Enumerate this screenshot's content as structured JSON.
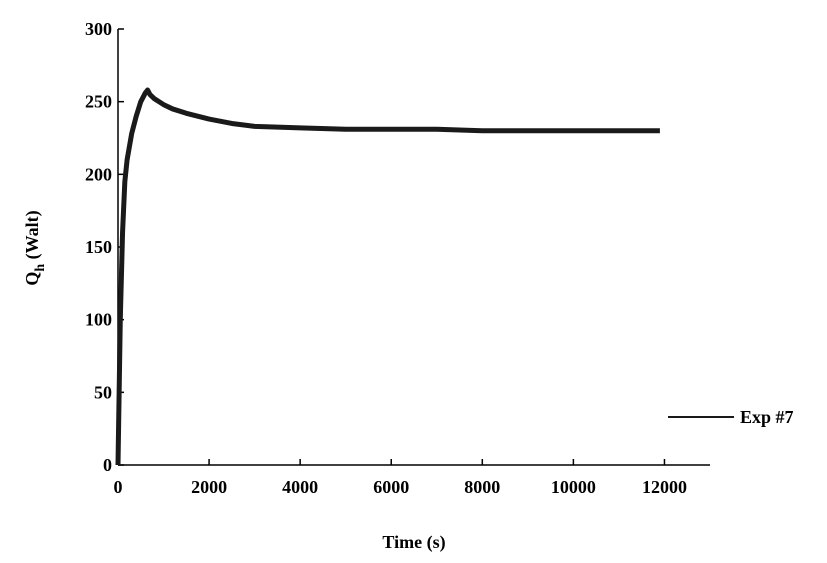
{
  "chart_data": {
    "type": "line",
    "xlabel": "Time (s)",
    "ylabel": {
      "main": "Q",
      "sub": "h",
      "rest": " (Walt)"
    },
    "x": [
      0,
      50,
      100,
      150,
      200,
      300,
      400,
      500,
      600,
      650,
      700,
      800,
      1000,
      1200,
      1500,
      2000,
      2500,
      3000,
      4000,
      5000,
      6000,
      7000,
      8000,
      9000,
      10000,
      11000,
      11900
    ],
    "series": [
      {
        "name": "Exp #7",
        "color": "#1a1a1a",
        "values": [
          0,
          100,
          160,
          195,
          210,
          228,
          240,
          250,
          256,
          258,
          255,
          252,
          248,
          245,
          242,
          238,
          235,
          233,
          232,
          231,
          231,
          231,
          230,
          230,
          230,
          230,
          230
        ]
      }
    ],
    "xlim": [
      0,
      13000
    ],
    "xticks": [
      0,
      2000,
      4000,
      6000,
      8000,
      10000,
      12000
    ],
    "ylim": [
      0,
      300
    ],
    "yticks": [
      0,
      50,
      100,
      150,
      200,
      250,
      300
    ],
    "grid": false,
    "legend": "right"
  }
}
